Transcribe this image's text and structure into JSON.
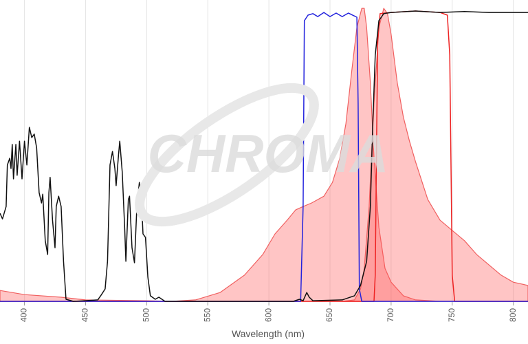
{
  "chart_data": {
    "type": "line",
    "watermark": "CHROMA",
    "xlabel": "Wavelength (nm)",
    "xlim": [
      380,
      812
    ],
    "ylim": [
      0,
      100
    ],
    "xticks": [
      400,
      450,
      500,
      550,
      600,
      650,
      700,
      750,
      800
    ],
    "grid": true,
    "series": [
      {
        "color": "#f06060",
        "fill": "rgba(255,90,90,0.35)",
        "x": [
          380,
          400,
          430,
          450,
          500,
          520,
          540,
          560,
          580,
          595,
          605,
          615,
          622,
          628,
          635,
          645,
          652,
          658,
          663,
          668,
          672,
          676,
          678,
          680,
          683,
          686,
          690,
          695,
          700,
          710,
          720,
          740,
          812
        ],
        "values": [
          3.7,
          2.3,
          1.4,
          0.5,
          0.2,
          0,
          0.5,
          3.0,
          8.9,
          15.9,
          22.9,
          27.6,
          31.1,
          32.2,
          33.4,
          35.7,
          40.4,
          48.6,
          60.3,
          79.0,
          93.0,
          99.5,
          99.5,
          93.0,
          74.3,
          48.6,
          25.2,
          11.2,
          6.5,
          1.9,
          0.5,
          0,
          0
        ]
      },
      {
        "color": "#f06060",
        "fill": "rgba(255,90,90,0.35)",
        "x": [
          660,
          670,
          675,
          678,
          682,
          686,
          690,
          694,
          697,
          700,
          705,
          710,
          715,
          720,
          730,
          740,
          750,
          760,
          770,
          780,
          790,
          800,
          812
        ],
        "values": [
          0,
          0.5,
          4.2,
          11.2,
          32.2,
          67.3,
          93.0,
          99.5,
          97.7,
          90.7,
          74.3,
          62.6,
          54.4,
          47.4,
          34.6,
          27.6,
          24.1,
          20.6,
          15.9,
          12.4,
          8.9,
          6.5,
          5.4
        ]
      },
      {
        "color": "#ee2222",
        "x": [
          380,
          686,
          687,
          689,
          691,
          700,
          720,
          740,
          746,
          748,
          750,
          752,
          812
        ],
        "values": [
          0,
          0,
          8.9,
          88.3,
          97.7,
          98.1,
          98.6,
          98.1,
          97.2,
          83.6,
          8.9,
          0,
          0
        ]
      },
      {
        "color": "#2222dd",
        "x": [
          380,
          626,
          628,
          629,
          632,
          636,
          640,
          645,
          650,
          655,
          660,
          665,
          670,
          672,
          673,
          674,
          676,
          812
        ],
        "values": [
          0,
          0,
          32.2,
          95.3,
          97.2,
          97.7,
          96.7,
          98.1,
          96.7,
          97.9,
          96.7,
          97.9,
          96.9,
          96.5,
          67.3,
          4.2,
          0,
          0
        ]
      },
      {
        "color": "#111111",
        "x": [
          380,
          382,
          385,
          386,
          388,
          389,
          390,
          391,
          393,
          394,
          396,
          398,
          400,
          402,
          404,
          406,
          408,
          410,
          412,
          414,
          415,
          417,
          419,
          420,
          421,
          423,
          425,
          426,
          428,
          430,
          432,
          434,
          440,
          450,
          460,
          463,
          466,
          468,
          470,
          472,
          474,
          475,
          477,
          478,
          480,
          482,
          483,
          485,
          486,
          488,
          490,
          492,
          494,
          496,
          497,
          499,
          501,
          503,
          507,
          510,
          515,
          620,
          625,
          628,
          631,
          633,
          636,
          660,
          670,
          675,
          680,
          683,
          685,
          687,
          690,
          694,
          700,
          720,
          740,
          760,
          780,
          812
        ],
        "values": [
          29.9,
          28.0,
          32.2,
          46.3,
          48.6,
          45.1,
          53.3,
          41.6,
          53.3,
          42.8,
          54.4,
          41.6,
          54.4,
          46.3,
          59.1,
          55.6,
          56.8,
          52.1,
          36.9,
          33.4,
          36.4,
          20.6,
          15.9,
          36.9,
          42.1,
          27.6,
          18.2,
          32.2,
          35.7,
          32.2,
          13.6,
          0.7,
          0,
          0.2,
          0.5,
          2.3,
          4.2,
          13.6,
          46.3,
          50.9,
          45.1,
          39.3,
          49.8,
          54.4,
          43.9,
          25.2,
          13.6,
          34.6,
          35.7,
          18.2,
          13.1,
          32.2,
          40.4,
          32.2,
          22.9,
          21.7,
          8.2,
          1.9,
          0.7,
          1.4,
          0,
          0,
          0.7,
          0.2,
          3.0,
          1.4,
          0.2,
          0.5,
          1.9,
          5.4,
          13.6,
          32.2,
          60.3,
          83.6,
          95.3,
          97.7,
          98.1,
          98.6,
          98.1,
          98.4,
          98.1,
          98.1
        ]
      }
    ]
  }
}
